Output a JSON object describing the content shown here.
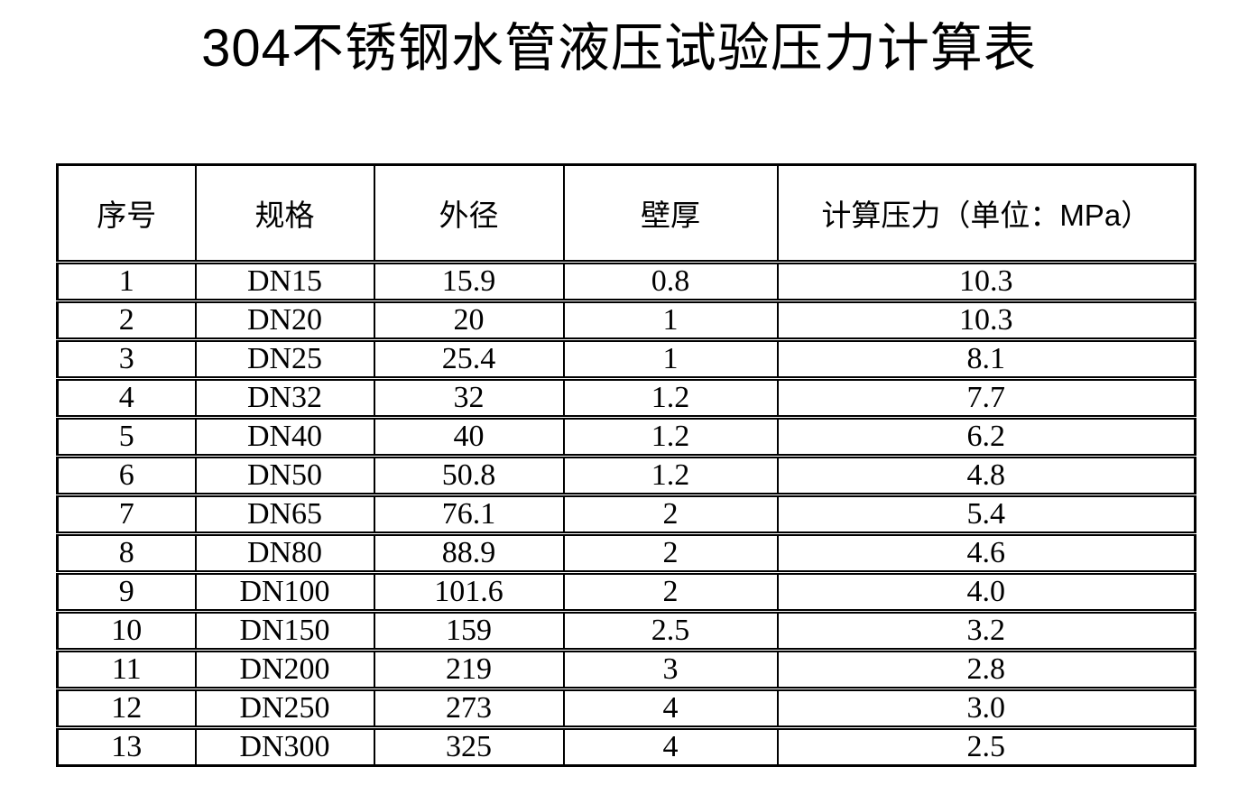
{
  "title": "304不锈钢水管液压试验压力计算表",
  "colors": {
    "background": "#ffffff",
    "text": "#000000",
    "border": "#000000"
  },
  "table": {
    "columns": [
      "序号",
      "规格",
      "外径",
      "壁厚",
      "计算压力（单位：MPa）"
    ],
    "rows": [
      [
        "1",
        "DN15",
        "15.9",
        "0.8",
        "10.3"
      ],
      [
        "2",
        "DN20",
        "20",
        "1",
        "10.3"
      ],
      [
        "3",
        "DN25",
        "25.4",
        "1",
        "8.1"
      ],
      [
        "4",
        "DN32",
        "32",
        "1.2",
        "7.7"
      ],
      [
        "5",
        "DN40",
        "40",
        "1.2",
        "6.2"
      ],
      [
        "6",
        "DN50",
        "50.8",
        "1.2",
        "4.8"
      ],
      [
        "7",
        "DN65",
        "76.1",
        "2",
        "5.4"
      ],
      [
        "8",
        "DN80",
        "88.9",
        "2",
        "4.6"
      ],
      [
        "9",
        "DN100",
        "101.6",
        "2",
        "4.0"
      ],
      [
        "10",
        "DN150",
        "159",
        "2.5",
        "3.2"
      ],
      [
        "11",
        "DN200",
        "219",
        "3",
        "2.8"
      ],
      [
        "12",
        "DN250",
        "273",
        "4",
        "3.0"
      ],
      [
        "13",
        "DN300",
        "325",
        "4",
        "2.5"
      ]
    ]
  }
}
